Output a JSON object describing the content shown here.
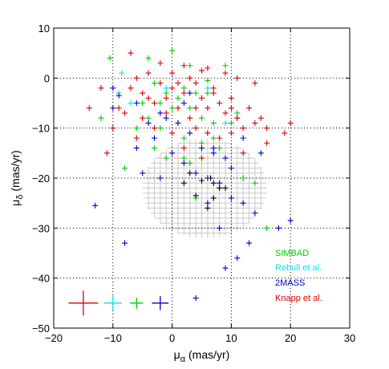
{
  "chart_data": {
    "type": "scatter",
    "xlabel": {
      "base": "μ",
      "sub": "α",
      "rest": " (mas/yr)"
    },
    "ylabel": {
      "base": "μ",
      "sub": "δ",
      "rest": " (mas/yr)"
    },
    "xlim": [
      -20,
      30
    ],
    "ylim": [
      -50,
      10
    ],
    "xticks": [
      -20,
      -10,
      0,
      10,
      20,
      30
    ],
    "yticks": [
      -50,
      -40,
      -30,
      -20,
      -10,
      0,
      10
    ],
    "xtick_labels": [
      "−20",
      "−10",
      "0",
      "10",
      "20",
      "30"
    ],
    "ytick_labels": [
      "−50",
      "−40",
      "−30",
      "−20",
      "−10",
      "0",
      "10"
    ],
    "grid": true,
    "legend_position": "bottom-right",
    "region": {
      "shape": "ellipse-hatched",
      "center": [
        5.5,
        -22
      ],
      "radii": [
        10.5,
        10
      ],
      "grid_step": 1,
      "color": "#c8c8c8"
    },
    "series": [
      {
        "name": "SIMBAD",
        "color": "#00cc00",
        "points": [
          [
            -10.5,
            4
          ],
          [
            -4,
            4
          ],
          [
            0,
            5.5
          ],
          [
            3,
            2.5
          ],
          [
            6,
            -0.5
          ],
          [
            9,
            2.5
          ],
          [
            -12,
            -8
          ],
          [
            -3,
            -1
          ],
          [
            -1,
            -3
          ],
          [
            1,
            -4
          ],
          [
            3,
            -6
          ],
          [
            5,
            -8
          ],
          [
            7,
            -9
          ],
          [
            -6,
            -10
          ],
          [
            -2,
            -10
          ],
          [
            2,
            -12
          ],
          [
            5,
            -13
          ],
          [
            8,
            -14
          ],
          [
            -1,
            -16
          ],
          [
            3,
            -17
          ],
          [
            -8,
            -18
          ],
          [
            12,
            -20
          ],
          [
            4,
            -24
          ],
          [
            2,
            -16
          ],
          [
            14,
            -21
          ],
          [
            8,
            -22
          ],
          [
            16,
            -30
          ],
          [
            6,
            -11
          ],
          [
            -3,
            -14
          ],
          [
            0,
            -6
          ],
          [
            2,
            -2
          ],
          [
            4,
            -3
          ],
          [
            -5,
            -5
          ],
          [
            -2,
            -5
          ],
          [
            11,
            -7
          ],
          [
            7,
            -12
          ],
          [
            -4,
            -8
          ],
          [
            1,
            -9
          ],
          [
            10,
            -9
          ],
          [
            6,
            -3
          ]
        ]
      },
      {
        "name": "Rebull et al.",
        "color": "#00e5ee",
        "points": [
          [
            -9,
            -3
          ],
          [
            -8.5,
            1
          ],
          [
            -7,
            -5
          ],
          [
            -1,
            -2
          ],
          [
            6,
            -2
          ],
          [
            9,
            -9
          ],
          [
            11,
            -8
          ]
        ]
      },
      {
        "name": "2MASS",
        "color": "#0000cc",
        "points": [
          [
            -10,
            -2
          ],
          [
            -10,
            -6
          ],
          [
            -9,
            -3.5
          ],
          [
            -6,
            -5
          ],
          [
            -4,
            -9
          ],
          [
            -3,
            -12
          ],
          [
            -1,
            -8
          ],
          [
            1,
            -9
          ],
          [
            3,
            -11
          ],
          [
            5,
            -14
          ],
          [
            7,
            -15
          ],
          [
            9,
            -16
          ],
          [
            4,
            -19
          ],
          [
            6,
            -20
          ],
          [
            8,
            -21
          ],
          [
            10,
            -24
          ],
          [
            12,
            -25
          ],
          [
            14,
            -27
          ],
          [
            -13,
            -25.5
          ],
          [
            -8,
            -33
          ],
          [
            4,
            -44
          ],
          [
            9,
            -38
          ],
          [
            18,
            -30
          ],
          [
            20,
            -28.5
          ],
          [
            13,
            -33
          ],
          [
            11,
            -36
          ],
          [
            2,
            -17
          ],
          [
            -5,
            -19
          ],
          [
            0,
            -15
          ],
          [
            -2,
            -20
          ],
          [
            7,
            -14
          ],
          [
            10,
            -18
          ],
          [
            6,
            -25
          ],
          [
            8,
            -30
          ],
          [
            -2,
            -7
          ],
          [
            2,
            -5
          ],
          [
            12,
            -12
          ],
          [
            15,
            -15
          ],
          [
            3,
            -3
          ],
          [
            -6,
            -14
          ]
        ]
      },
      {
        "name": "Knapp et al.",
        "color": "#dd0000",
        "points": [
          [
            -14,
            -6
          ],
          [
            -10,
            -10
          ],
          [
            -8,
            -7
          ],
          [
            -7,
            -2
          ],
          [
            -6,
            0
          ],
          [
            -5,
            -3
          ],
          [
            -4,
            -4
          ],
          [
            -3,
            -5
          ],
          [
            -2,
            -1
          ],
          [
            -1,
            -4
          ],
          [
            0,
            -2
          ],
          [
            1,
            -6
          ],
          [
            2,
            -3
          ],
          [
            3,
            0
          ],
          [
            4,
            -1
          ],
          [
            5,
            -4
          ],
          [
            6,
            -6
          ],
          [
            7,
            -3
          ],
          [
            8,
            -5
          ],
          [
            9,
            -7
          ],
          [
            10,
            -4
          ],
          [
            11,
            -8
          ],
          [
            12,
            -10
          ],
          [
            13,
            -6
          ],
          [
            14,
            -9
          ],
          [
            15,
            -8
          ],
          [
            16,
            -10
          ],
          [
            -11,
            -15
          ],
          [
            -7,
            5
          ],
          [
            -2,
            3
          ],
          [
            2,
            2.5
          ],
          [
            5,
            1.5
          ],
          [
            9,
            1
          ],
          [
            11,
            0
          ],
          [
            14,
            -1
          ],
          [
            -3,
            -10
          ],
          [
            0,
            -11
          ],
          [
            4,
            -10
          ],
          [
            6,
            -11
          ],
          [
            8,
            -12
          ],
          [
            20,
            -9
          ],
          [
            19,
            -11
          ],
          [
            -5,
            -8
          ],
          [
            -1,
            -7
          ],
          [
            3,
            -8
          ],
          [
            7,
            -2
          ],
          [
            10,
            -6
          ],
          [
            0,
            1
          ],
          [
            -4,
            1
          ],
          [
            1,
            -1
          ],
          [
            -6,
            -12
          ],
          [
            2,
            -14
          ],
          [
            5,
            -16
          ],
          [
            -12,
            -2
          ],
          [
            -9,
            -6
          ],
          [
            6,
            2
          ],
          [
            10,
            -11
          ],
          [
            12,
            -15
          ],
          [
            16,
            -13
          ],
          [
            4,
            -6
          ]
        ]
      },
      {
        "name": "",
        "color": "#000000",
        "points": [
          [
            3,
            -19
          ],
          [
            5,
            -20.5
          ],
          [
            7,
            -21
          ],
          [
            8,
            -22
          ],
          [
            9,
            -22
          ],
          [
            2,
            -21
          ],
          [
            4,
            -23.5
          ],
          [
            6,
            -26
          ],
          [
            7,
            -24
          ],
          [
            6.5,
            -20
          ]
        ]
      }
    ],
    "error_bars": [
      {
        "series": "Knapp et al.",
        "x": -15,
        "y": -45,
        "xerr": 2.5,
        "yerr": 2.5
      },
      {
        "series": "Rebull et al.",
        "x": -10,
        "y": -45,
        "xerr": 1.5,
        "yerr": 1.5
      },
      {
        "series": "SIMBAD",
        "x": -6,
        "y": -45,
        "xerr": 1.1,
        "yerr": 1.1
      },
      {
        "series": "2MASS",
        "x": -2,
        "y": -45,
        "xerr": 1.4,
        "yerr": 1.4
      }
    ]
  }
}
